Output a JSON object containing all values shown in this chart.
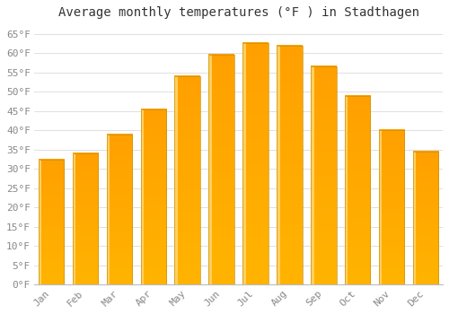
{
  "title": "Average monthly temperatures (°F ) in Stadthagen",
  "months": [
    "Jan",
    "Feb",
    "Mar",
    "Apr",
    "May",
    "Jun",
    "Jul",
    "Aug",
    "Sep",
    "Oct",
    "Nov",
    "Dec"
  ],
  "values": [
    32.5,
    34.0,
    39.0,
    45.5,
    54.0,
    59.5,
    62.5,
    62.0,
    56.5,
    49.0,
    40.0,
    34.5
  ],
  "bar_color_bottom": "#FFB400",
  "bar_color_top": "#FFA000",
  "bar_color_left_highlight": "#FFD060",
  "bar_edge_color": "#C8920A",
  "background_color": "#FFFFFF",
  "grid_color": "#E0E0E0",
  "ylim": [
    0,
    67
  ],
  "ytick_step": 5,
  "title_fontsize": 10,
  "tick_fontsize": 8,
  "tick_color": "#888888",
  "title_color": "#333333",
  "font_family": "monospace",
  "bar_width": 0.75,
  "figsize": [
    5.0,
    3.5
  ],
  "dpi": 100
}
